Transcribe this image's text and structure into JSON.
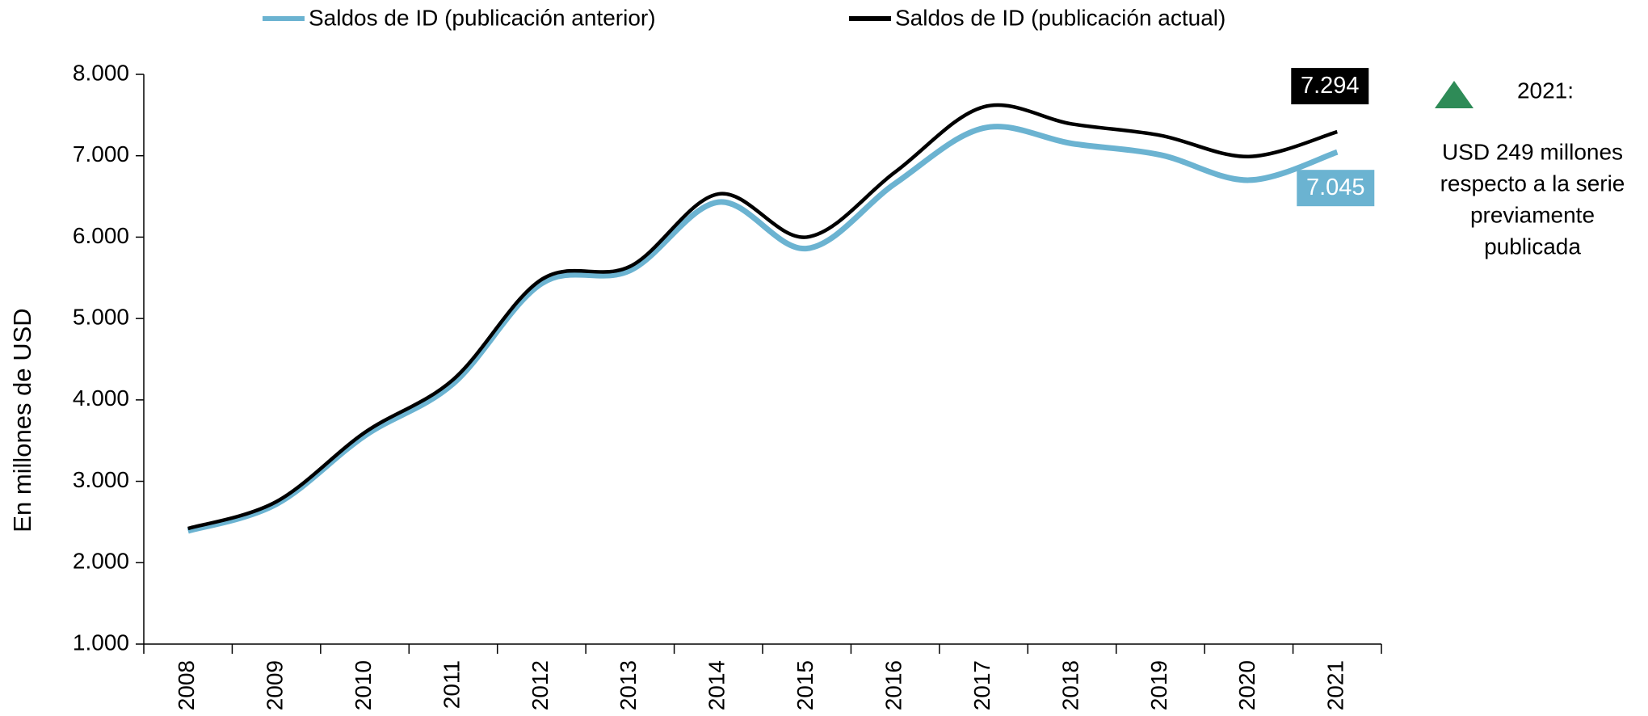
{
  "chart_data": {
    "type": "line",
    "y_label": "En millones de USD",
    "categories": [
      "2008",
      "2009",
      "2010",
      "2011",
      "2012",
      "2013",
      "2014",
      "2015",
      "2016",
      "2017",
      "2018",
      "2019",
      "2020",
      "2021"
    ],
    "series": [
      {
        "name": "Saldos de ID (publicación anterior)",
        "color": "#6bb3d1",
        "values": [
          2390,
          2720,
          3560,
          4200,
          5430,
          5590,
          6430,
          5860,
          6660,
          7340,
          7150,
          7010,
          6700,
          7045
        ],
        "value_labels": [
          null,
          null,
          null,
          null,
          null,
          null,
          null,
          null,
          null,
          null,
          null,
          null,
          null,
          "7.045"
        ]
      },
      {
        "name": "Saldos de ID (publicación actual)",
        "color": "#000000",
        "values": [
          2420,
          2750,
          3600,
          4250,
          5480,
          5640,
          6530,
          6000,
          6800,
          7600,
          7390,
          7250,
          6990,
          7294
        ],
        "value_labels": [
          null,
          null,
          null,
          null,
          null,
          null,
          null,
          null,
          null,
          null,
          null,
          null,
          null,
          "7.294"
        ]
      }
    ],
    "ylim": [
      1000,
      8000
    ],
    "yticks": [
      {
        "value": 1000,
        "label": "1.000"
      },
      {
        "value": 2000,
        "label": "2.000"
      },
      {
        "value": 3000,
        "label": "3.000"
      },
      {
        "value": 4000,
        "label": "4.000"
      },
      {
        "value": 5000,
        "label": "5.000"
      },
      {
        "value": 6000,
        "label": "6.000"
      },
      {
        "value": 7000,
        "label": "7.000"
      },
      {
        "value": 8000,
        "label": "8.000"
      }
    ],
    "annotation": {
      "title": "2021:",
      "lines": [
        "USD 249 millones",
        "respecto a la serie",
        "previamente",
        "publicada"
      ],
      "marker_color": "#2e8b57"
    }
  }
}
